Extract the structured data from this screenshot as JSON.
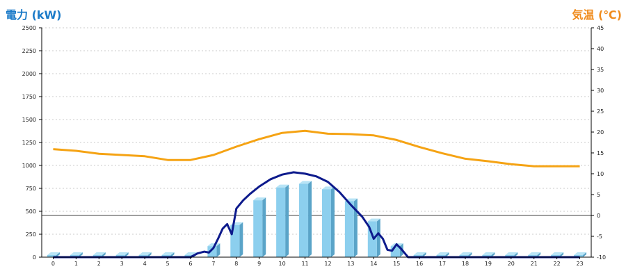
{
  "chart_data": {
    "type": "bar",
    "left_axis_title": "電力 (kW)",
    "right_axis_title": "気温 (℃)",
    "colors": {
      "left_title": "#1a7ac8",
      "right_title": "#f08c1e",
      "bar_front": "#8ccfee",
      "bar_side": "#5aa4c8",
      "bar_top": "#b8e4f6",
      "temp_line": "#f5a314",
      "power_line": "#0d1a8c",
      "grid": "#bbbbbb"
    },
    "hours": [
      "0",
      "1",
      "2",
      "3",
      "4",
      "5",
      "6",
      "7",
      "8",
      "9",
      "10",
      "11",
      "12",
      "13",
      "14",
      "15",
      "16",
      "17",
      "18",
      "19",
      "20",
      "21",
      "22",
      "23"
    ],
    "left_axis": {
      "min": 0,
      "max": 2500,
      "ticks": [
        0,
        250,
        500,
        750,
        1000,
        1250,
        1500,
        1750,
        2000,
        2250,
        2500
      ]
    },
    "right_axis": {
      "min": -10,
      "max": 45,
      "ticks": [
        -10,
        -5,
        0,
        5,
        10,
        15,
        20,
        25,
        30,
        35,
        40,
        45
      ],
      "zero_line": 0
    },
    "grid": true,
    "series": [
      {
        "kind": "bar",
        "axis": "left",
        "values": [
          0,
          0,
          0,
          0,
          0,
          0,
          0,
          120,
          350,
          620,
          760,
          800,
          740,
          610,
          390,
          120,
          0,
          0,
          0,
          0,
          0,
          0,
          0,
          0
        ]
      },
      {
        "kind": "line",
        "axis": "right",
        "values": [
          15.9,
          15.5,
          14.8,
          14.5,
          14.2,
          13.3,
          13.3,
          14.5,
          16.5,
          18.3,
          19.8,
          20.3,
          19.6,
          19.5,
          19.2,
          18.1,
          16.4,
          14.9,
          13.6,
          13.0,
          12.3,
          11.8,
          11.8,
          11.8
        ]
      },
      {
        "kind": "line",
        "axis": "left",
        "x": [
          0,
          1,
          2,
          3,
          4,
          5,
          6,
          6.3,
          6.6,
          6.8,
          7.0,
          7.2,
          7.4,
          7.6,
          7.8,
          8.0,
          8.3,
          8.6,
          9,
          9.5,
          10,
          10.5,
          11,
          11.5,
          12,
          12.5,
          13,
          13.5,
          13.8,
          14.0,
          14.2,
          14.4,
          14.6,
          14.8,
          15.0,
          15.2,
          15.4,
          15.5,
          16,
          17,
          18,
          19,
          20,
          21,
          22,
          23
        ],
        "values": [
          0,
          0,
          0,
          0,
          0,
          0,
          0,
          40,
          60,
          50,
          100,
          200,
          310,
          360,
          250,
          530,
          620,
          690,
          770,
          850,
          900,
          925,
          910,
          880,
          820,
          710,
          570,
          440,
          330,
          200,
          260,
          200,
          80,
          70,
          140,
          90,
          30,
          0,
          0,
          0,
          0,
          0,
          0,
          0,
          0,
          0
        ]
      }
    ]
  }
}
